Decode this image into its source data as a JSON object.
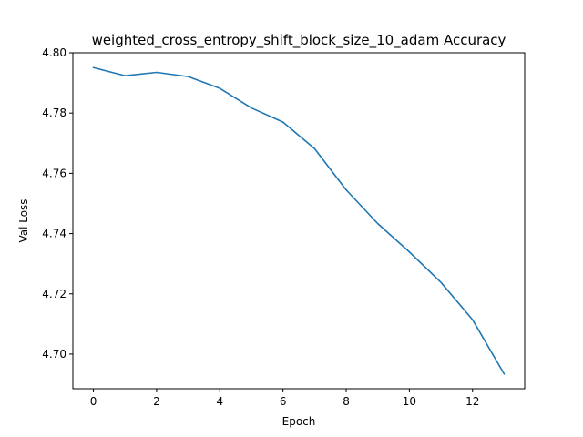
{
  "chart_data": {
    "type": "line",
    "title": "weighted_cross_entropy_shift_block_size_10_adam Accuracy",
    "xlabel": "Epoch",
    "ylabel": "Val Loss",
    "xlim": [
      -0.65,
      13.65
    ],
    "ylim": [
      4.6885,
      4.8
    ],
    "xticks": [
      0,
      2,
      4,
      6,
      8,
      10,
      12
    ],
    "xtick_labels": [
      "0",
      "2",
      "4",
      "6",
      "8",
      "10",
      "12"
    ],
    "yticks": [
      4.7,
      4.72,
      4.74,
      4.76,
      4.78,
      4.8
    ],
    "ytick_labels": [
      "4.70",
      "4.72",
      "4.74",
      "4.76",
      "4.78",
      "4.80"
    ],
    "grid": false,
    "legend": "none",
    "series": [
      {
        "color": "#1f77b4",
        "x": [
          0,
          1,
          2,
          3,
          4,
          5,
          6,
          7,
          8,
          9,
          10,
          11,
          12,
          13
        ],
        "y": [
          4.7951,
          4.7924,
          4.7935,
          4.7921,
          4.7882,
          4.7817,
          4.777,
          4.7682,
          4.7545,
          4.7433,
          4.7339,
          4.7238,
          4.7114,
          4.6934
        ]
      }
    ]
  }
}
